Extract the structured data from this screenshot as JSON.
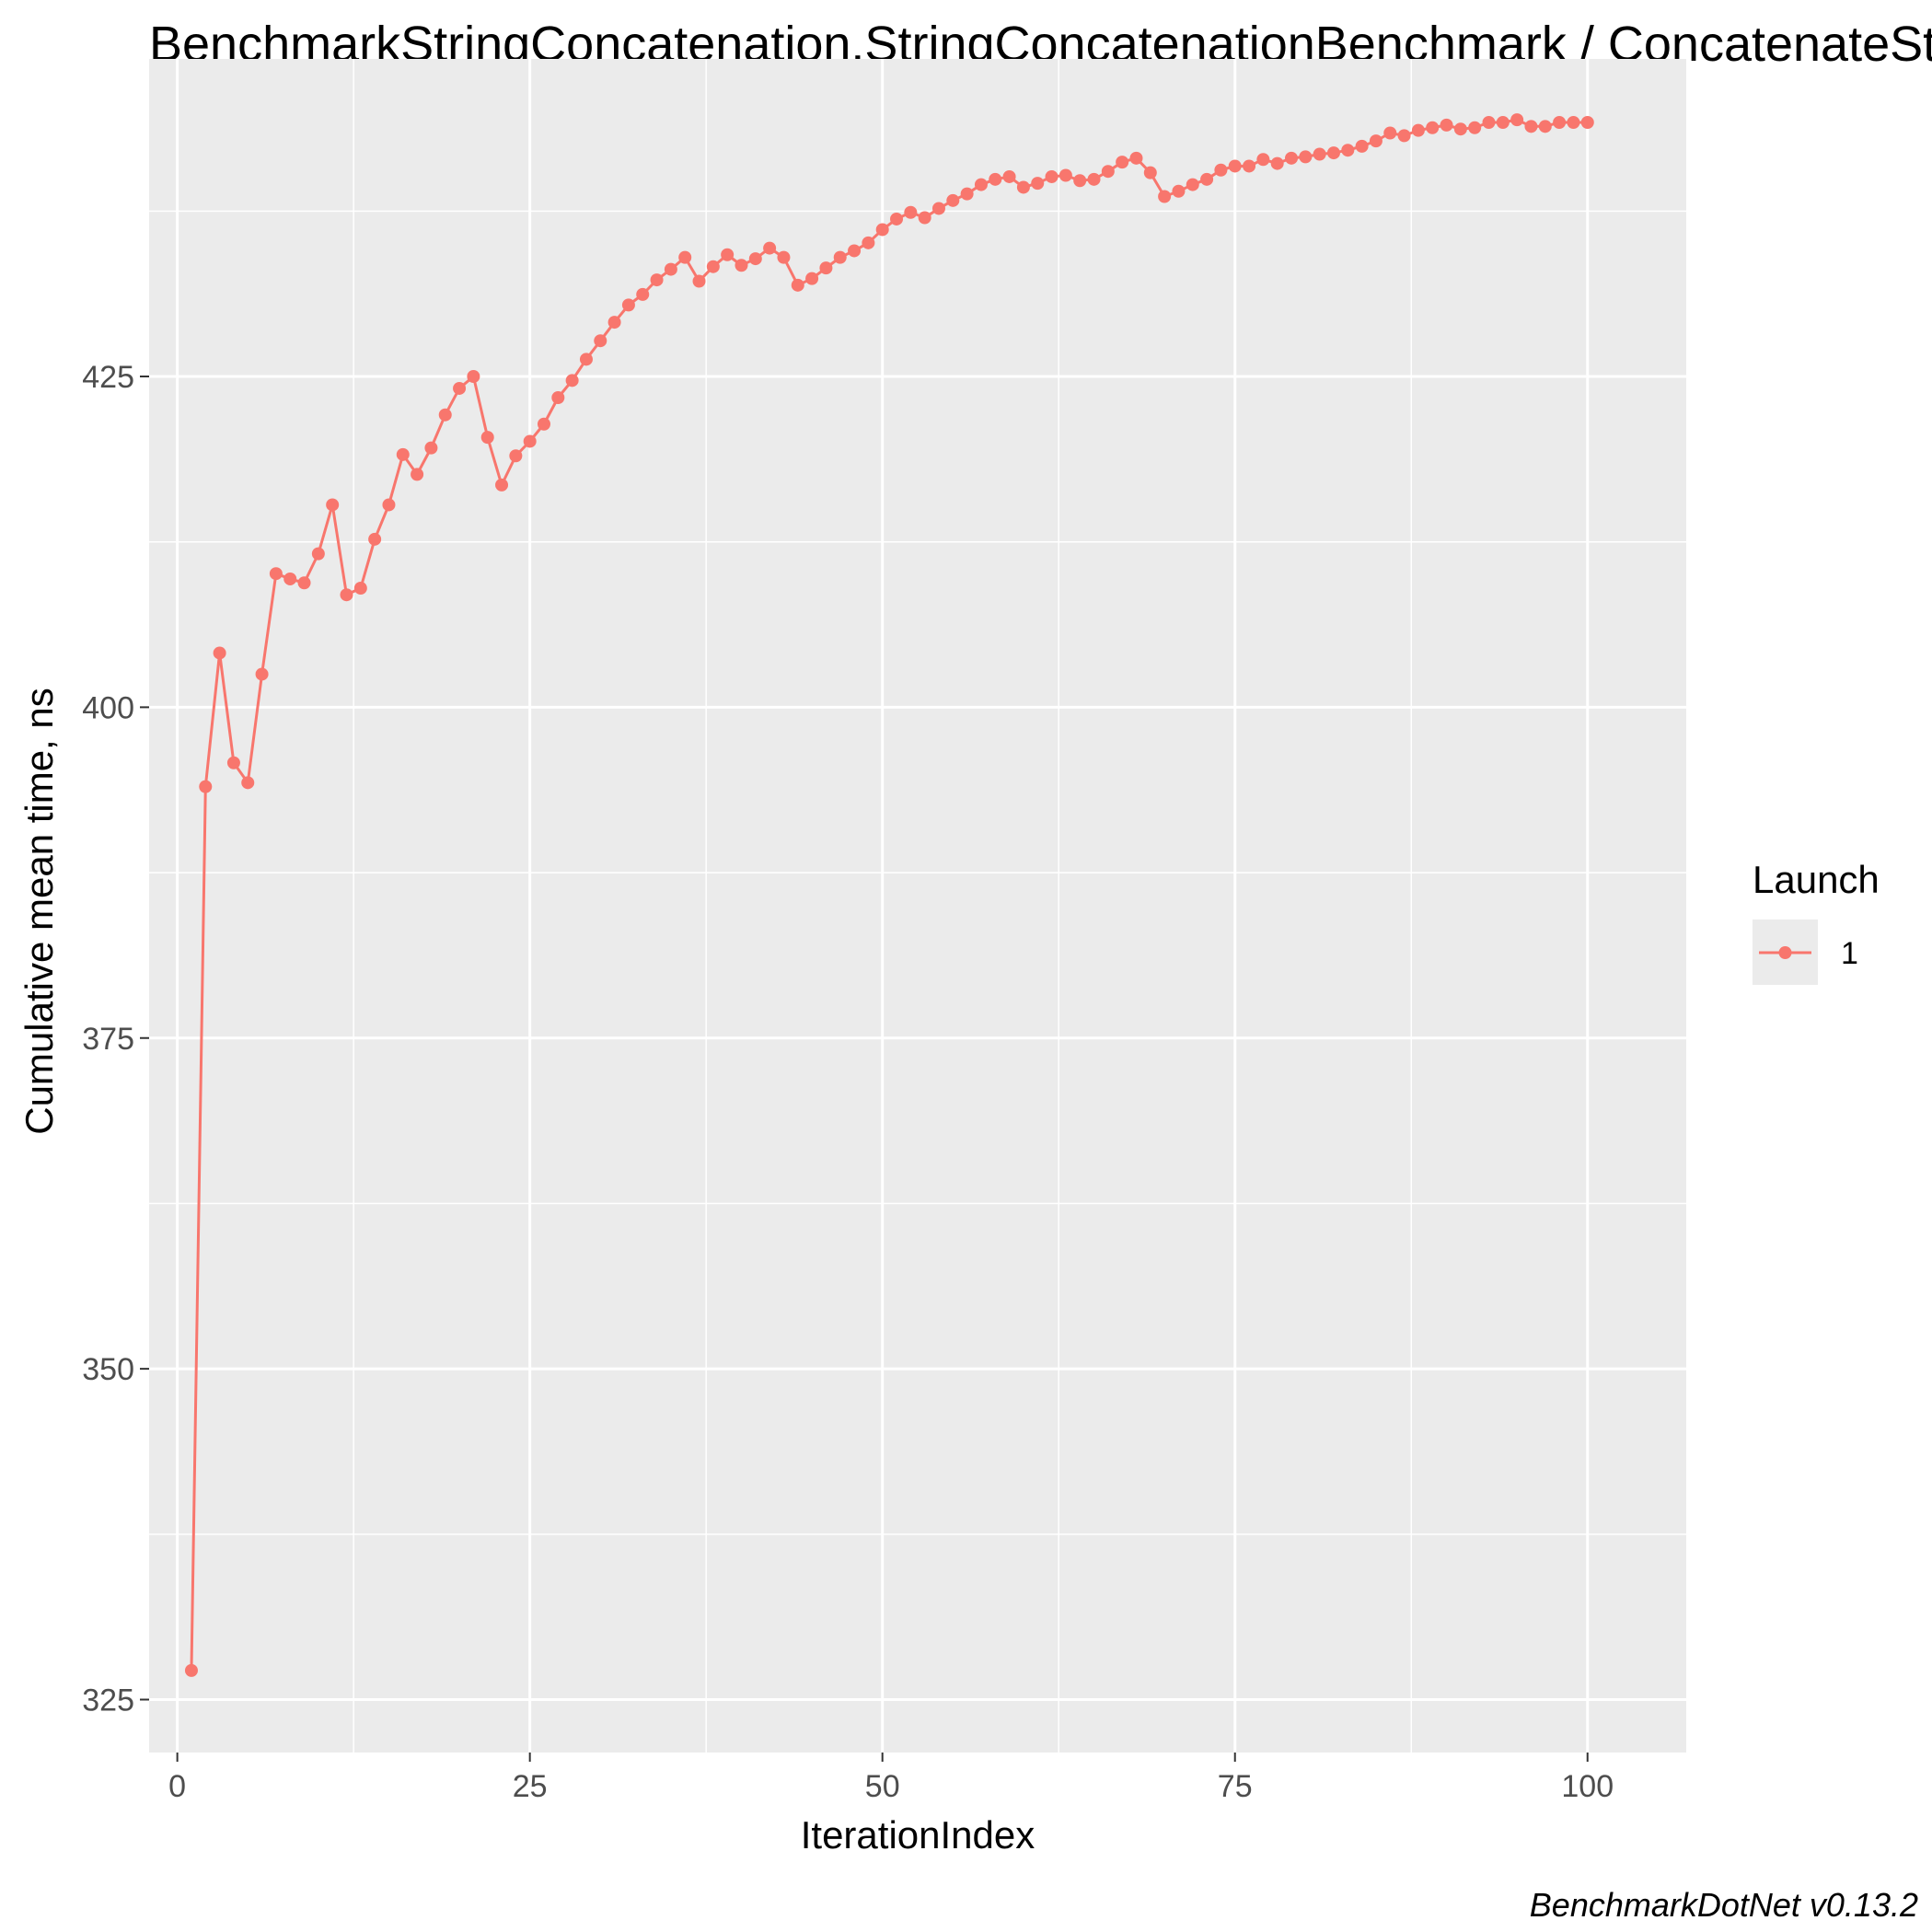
{
  "chart_data": {
    "type": "line",
    "title": "BenchmarkStringConcatenation.StringConcatenationBenchmark / ConcatenateStrings",
    "xlabel": "IterationIndex",
    "ylabel": "Cumulative mean time, ns",
    "caption": "BenchmarkDotNet v0.13.2",
    "xlim": [
      -2,
      107
    ],
    "ylim": [
      321,
      449
    ],
    "x_ticks": [
      0,
      25,
      50,
      75,
      100
    ],
    "x_tick_labels": [
      "0",
      "25",
      "50",
      "75",
      "100"
    ],
    "y_ticks": [
      325,
      350,
      375,
      400,
      425
    ],
    "y_tick_labels": [
      "325",
      "350",
      "375",
      "400",
      "425"
    ],
    "grid": true,
    "legend": {
      "title": "Launch",
      "position": "right"
    },
    "series": [
      {
        "name": "1",
        "color": "#f8766d",
        "x": [
          1,
          2,
          3,
          4,
          5,
          6,
          7,
          8,
          9,
          10,
          11,
          12,
          13,
          14,
          15,
          16,
          17,
          18,
          19,
          20,
          21,
          22,
          23,
          24,
          25,
          26,
          27,
          28,
          29,
          30,
          31,
          32,
          33,
          34,
          35,
          36,
          37,
          38,
          39,
          40,
          41,
          42,
          43,
          44,
          45,
          46,
          47,
          48,
          49,
          50,
          51,
          52,
          53,
          54,
          55,
          56,
          57,
          58,
          59,
          60,
          61,
          62,
          63,
          64,
          65,
          66,
          67,
          68,
          69,
          70,
          71,
          72,
          73,
          74,
          75,
          76,
          77,
          78,
          79,
          80,
          81,
          82,
          83,
          84,
          85,
          86,
          87,
          88,
          89,
          90,
          91,
          92,
          93,
          94,
          95,
          96,
          97,
          98,
          99,
          100
        ],
        "values": [
          327.2,
          394,
          404.1,
          395.8,
          394.3,
          402.5,
          410.1,
          409.7,
          409.4,
          411.6,
          415.3,
          408.5,
          409,
          412.7,
          415.3,
          419.1,
          417.6,
          419.6,
          422.1,
          424.1,
          425,
          420.4,
          416.8,
          419,
          420.1,
          421.4,
          423.4,
          424.7,
          426.3,
          427.7,
          429.1,
          430.4,
          431.2,
          432.3,
          433.1,
          434,
          432.2,
          433.3,
          434.2,
          433.4,
          433.9,
          434.7,
          434,
          431.9,
          432.4,
          433.2,
          434,
          434.5,
          435.1,
          436.1,
          436.9,
          437.4,
          437,
          437.7,
          438.3,
          438.8,
          439.5,
          439.9,
          440.1,
          439.3,
          439.6,
          440.1,
          440.2,
          439.8,
          439.9,
          440.5,
          441.2,
          441.5,
          440.4,
          438.6,
          439,
          439.5,
          439.9,
          440.6,
          440.9,
          440.9,
          441.4,
          441.1,
          441.5,
          441.6,
          441.8,
          441.9,
          442.1,
          442.4,
          442.8,
          443.4,
          443.2,
          443.6,
          443.8,
          444,
          443.7,
          443.8,
          444.2,
          444.2,
          444.4,
          443.9,
          443.9,
          444.2,
          444.2,
          444.2
        ]
      }
    ]
  }
}
